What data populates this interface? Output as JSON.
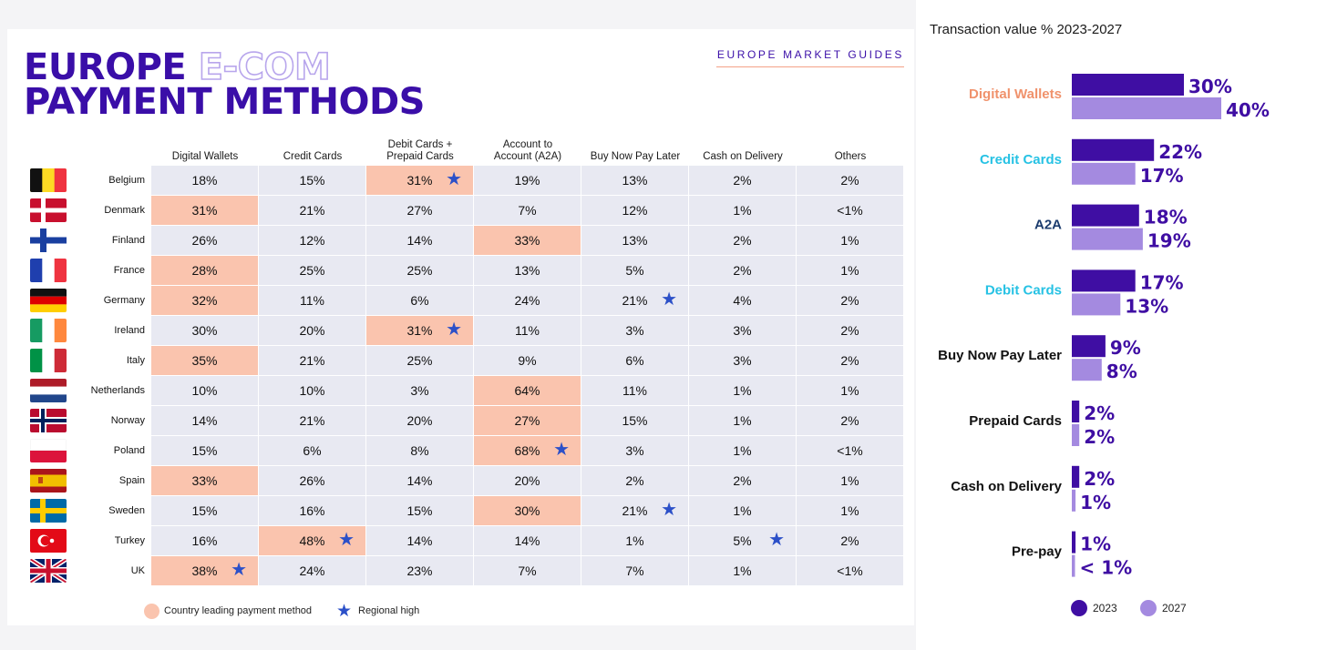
{
  "left": {
    "title_line1_strong": "EUROPE",
    "title_line1_outline": "E-COM",
    "title_line2": "PAYMENT METHODS",
    "market_guides": "EUROPE MARKET GUIDES",
    "columns": [
      "Digital Wallets",
      "Credit Cards",
      "Debit Cards +\nPrepaid Cards",
      "Account to\nAccount (A2A)",
      "Buy Now Pay Later",
      "Cash on Delivery",
      "Others"
    ],
    "rows": [
      {
        "country": "Belgium",
        "flag": "belgium",
        "values": [
          "18%",
          "15%",
          "31%",
          "19%",
          "13%",
          "2%",
          "2%"
        ],
        "lead": [
          2
        ],
        "star": [
          2
        ]
      },
      {
        "country": "Denmark",
        "flag": "denmark",
        "values": [
          "31%",
          "21%",
          "27%",
          "7%",
          "12%",
          "1%",
          "<1%"
        ],
        "lead": [
          0
        ],
        "star": []
      },
      {
        "country": "Finland",
        "flag": "finland",
        "values": [
          "26%",
          "12%",
          "14%",
          "33%",
          "13%",
          "2%",
          "1%"
        ],
        "lead": [
          3
        ],
        "star": []
      },
      {
        "country": "France",
        "flag": "france",
        "values": [
          "28%",
          "25%",
          "25%",
          "13%",
          "5%",
          "2%",
          "1%"
        ],
        "lead": [
          0
        ],
        "star": []
      },
      {
        "country": "Germany",
        "flag": "germany",
        "values": [
          "32%",
          "11%",
          "6%",
          "24%",
          "21%",
          "4%",
          "2%"
        ],
        "lead": [
          0
        ],
        "star": [
          4
        ]
      },
      {
        "country": "Ireland",
        "flag": "ireland",
        "values": [
          "30%",
          "20%",
          "31%",
          "11%",
          "3%",
          "3%",
          "2%"
        ],
        "lead": [
          2
        ],
        "star": [
          2
        ]
      },
      {
        "country": "Italy",
        "flag": "italy",
        "values": [
          "35%",
          "21%",
          "25%",
          "9%",
          "6%",
          "3%",
          "2%"
        ],
        "lead": [
          0
        ],
        "star": []
      },
      {
        "country": "Netherlands",
        "flag": "netherlands",
        "values": [
          "10%",
          "10%",
          "3%",
          "64%",
          "11%",
          "1%",
          "1%"
        ],
        "lead": [
          3
        ],
        "star": []
      },
      {
        "country": "Norway",
        "flag": "norway",
        "values": [
          "14%",
          "21%",
          "20%",
          "27%",
          "15%",
          "1%",
          "2%"
        ],
        "lead": [
          3
        ],
        "star": []
      },
      {
        "country": "Poland",
        "flag": "poland",
        "values": [
          "15%",
          "6%",
          "8%",
          "68%",
          "3%",
          "1%",
          "<1%"
        ],
        "lead": [
          3
        ],
        "star": [
          3
        ]
      },
      {
        "country": "Spain",
        "flag": "spain",
        "values": [
          "33%",
          "26%",
          "14%",
          "20%",
          "2%",
          "2%",
          "1%"
        ],
        "lead": [
          0
        ],
        "star": []
      },
      {
        "country": "Sweden",
        "flag": "sweden",
        "values": [
          "15%",
          "16%",
          "15%",
          "30%",
          "21%",
          "1%",
          "1%"
        ],
        "lead": [
          3
        ],
        "star": [
          4
        ]
      },
      {
        "country": "Turkey",
        "flag": "turkey",
        "values": [
          "16%",
          "48%",
          "14%",
          "14%",
          "1%",
          "5%",
          "2%"
        ],
        "lead": [
          1
        ],
        "star": [
          1,
          5
        ]
      },
      {
        "country": "UK",
        "flag": "uk",
        "values": [
          "38%",
          "24%",
          "23%",
          "7%",
          "7%",
          "1%",
          "<1%"
        ],
        "lead": [
          0
        ],
        "star": [
          0
        ]
      }
    ],
    "legend": {
      "lead_label": "Country leading payment method",
      "high_label": "Regional high",
      "star_glyph": "★"
    },
    "colors": {
      "lead": "#fac4ae",
      "cell": "#e8e9f2",
      "star": "#2c50c8",
      "brand": "#3a0ea8"
    }
  },
  "chart_data": {
    "type": "bar",
    "orientation": "horizontal",
    "title": "Transaction value % 2023-2027",
    "categories": [
      "Digital Wallets",
      "Credit Cards",
      "A2A",
      "Debit Cards",
      "Buy Now Pay Later",
      "Prepaid Cards",
      "Cash on Delivery",
      "Pre-pay"
    ],
    "category_colors": [
      "#f0926c",
      "#27c2e4",
      "#1c3c6e",
      "#27c2e4",
      "#111111",
      "#111111",
      "#111111",
      "#111111"
    ],
    "series": [
      {
        "name": "2023",
        "color": "#3f0ea3",
        "values": [
          30,
          22,
          18,
          17,
          9,
          2,
          2,
          1
        ],
        "labels": [
          "30%",
          "22%",
          "18%",
          "17%",
          "9%",
          "2%",
          "2%",
          "1%"
        ]
      },
      {
        "name": "2027",
        "color": "#a48ae0",
        "values": [
          40,
          17,
          19,
          13,
          8,
          2,
          1,
          0.5
        ],
        "labels": [
          "40%",
          "17%",
          "19%",
          "13%",
          "8%",
          "2%",
          "1%",
          "< 1%"
        ]
      }
    ],
    "xlim": [
      0,
      40
    ]
  }
}
